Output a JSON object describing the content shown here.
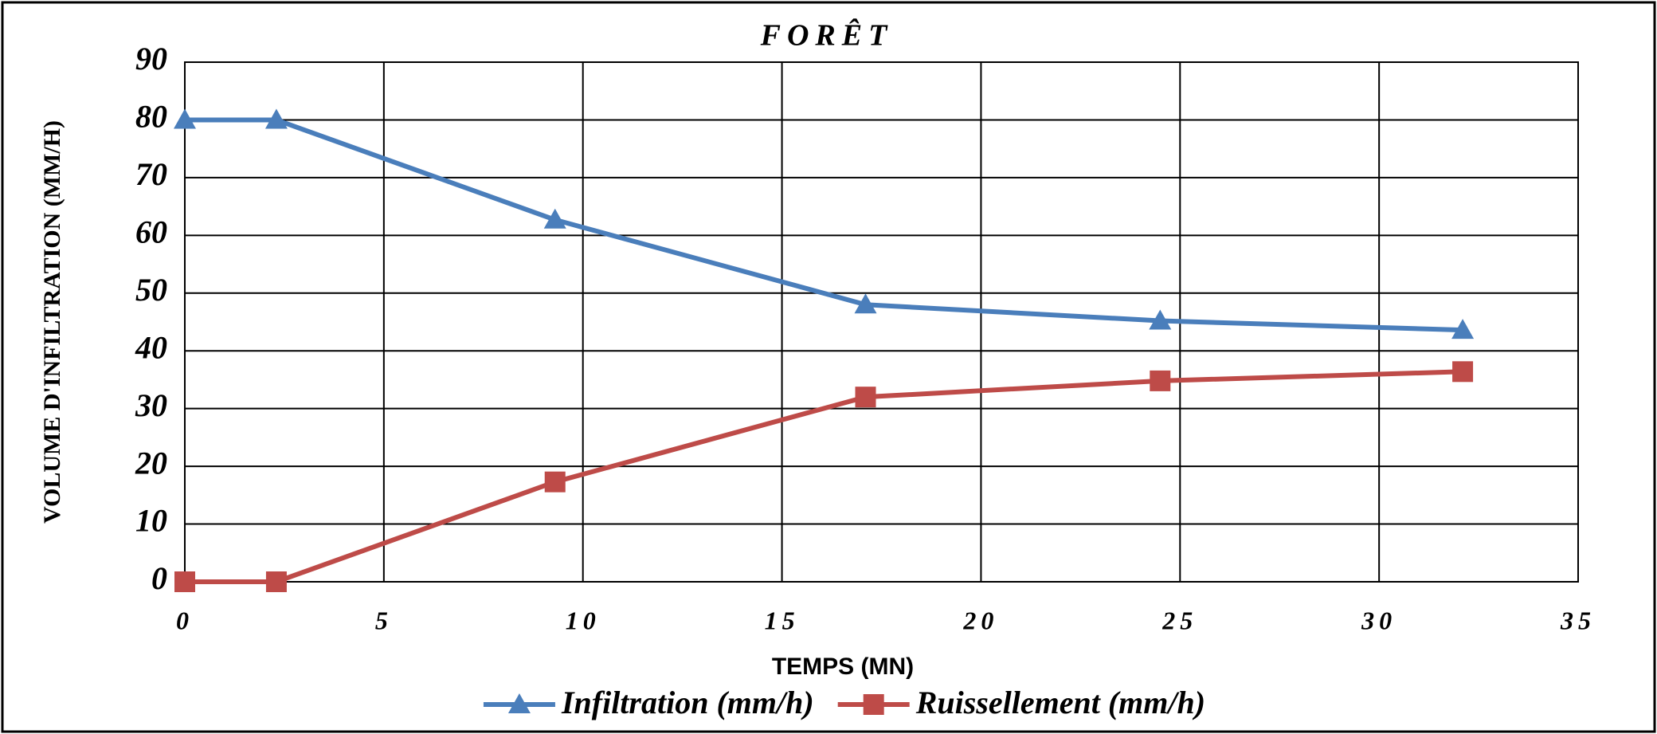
{
  "chart_data": {
    "type": "line",
    "title": "FORÊT",
    "x_label": "TEMPS (MN)",
    "y_label": "VOLUME D'INFILTRATION (MM/H)",
    "x": [
      0,
      2.3,
      9.3,
      17.1,
      24.5,
      32.1
    ],
    "series": [
      {
        "name": "Infiltration (mm/h)",
        "color": "#4a7ebb",
        "marker": "triangle",
        "values": [
          80,
          80,
          62.7,
          48,
          45.2,
          43.6
        ]
      },
      {
        "name": "Ruissellement (mm/h)",
        "color": "#be4b48",
        "marker": "square",
        "values": [
          0,
          0,
          17.3,
          32,
          34.8,
          36.4
        ]
      }
    ],
    "xlim": [
      0,
      35
    ],
    "xticks": [
      0,
      5,
      10,
      15,
      20,
      25,
      30,
      35
    ],
    "ylim": [
      0,
      90
    ],
    "yticks": [
      0,
      10,
      20,
      30,
      40,
      50,
      60,
      70,
      80,
      90
    ],
    "grid": true,
    "legend": "bottom"
  }
}
